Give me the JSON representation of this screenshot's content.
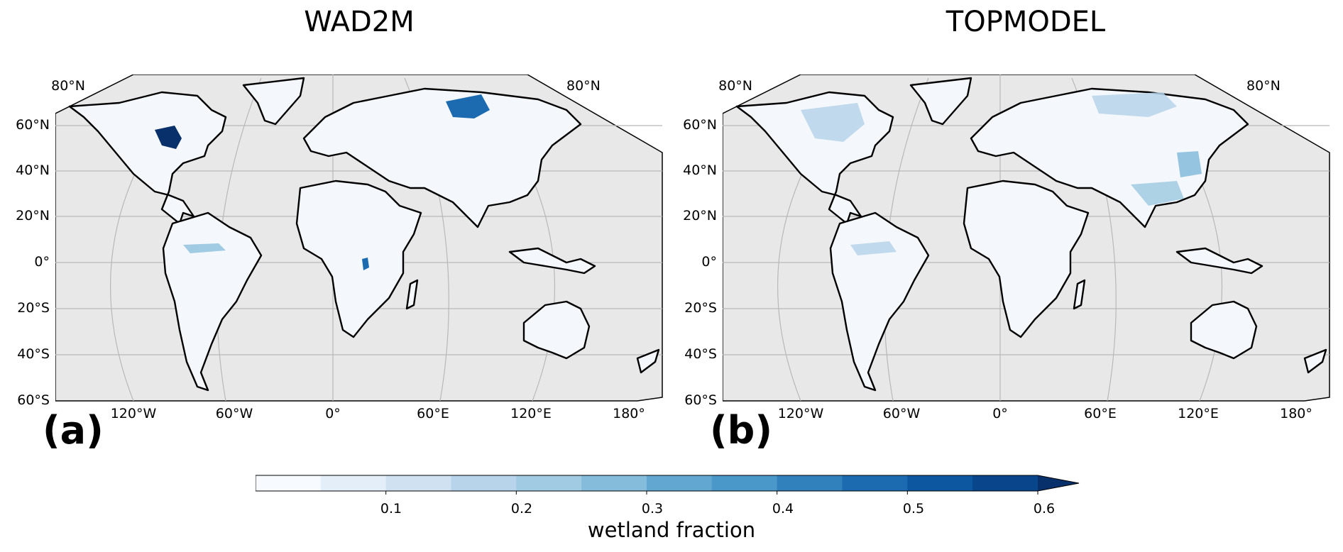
{
  "panels": [
    {
      "title": "WAD2M",
      "letter": "(a)",
      "lat_labels": [
        "80°N",
        "60°N",
        "40°N",
        "20°N",
        "0°",
        "20°S",
        "40°S",
        "60°S"
      ],
      "right_lat_label": "80°N",
      "lon_labels": [
        "120°W",
        "60°W",
        "0°",
        "60°E",
        "120°E",
        "180°"
      ]
    },
    {
      "title": "TOPMODEL",
      "letter": "(b)",
      "lat_labels": [
        "80°N",
        "60°N",
        "40°N",
        "20°N",
        "0°",
        "20°S",
        "40°S",
        "60°S"
      ],
      "right_lat_label": "80°N",
      "lon_labels": [
        "120°W",
        "60°W",
        "0°",
        "60°E",
        "120°E",
        "180°"
      ]
    }
  ],
  "colorbar": {
    "label": "wetland fraction",
    "ticks": [
      "0.1",
      "0.2",
      "0.3",
      "0.4",
      "0.5",
      "0.6"
    ],
    "levels": [
      0,
      0.05,
      0.1,
      0.15,
      0.2,
      0.25,
      0.3,
      0.35,
      0.4,
      0.45,
      0.5,
      0.55,
      0.6
    ],
    "extend": "max",
    "colors": [
      "#f7fbff",
      "#e3eef9",
      "#d0e1f2",
      "#b7d4ea",
      "#a0cbe2",
      "#85bcdb",
      "#61a7d2",
      "#4a98c9",
      "#3181bd",
      "#1c6bb0",
      "#0d57a1",
      "#08458a",
      "#08306b"
    ]
  },
  "map_style": {
    "ocean_color": "#e8e8e8",
    "land_color": "#f4f8fd",
    "grid_color": "#b8b8b8",
    "coast_color": "#000000"
  }
}
